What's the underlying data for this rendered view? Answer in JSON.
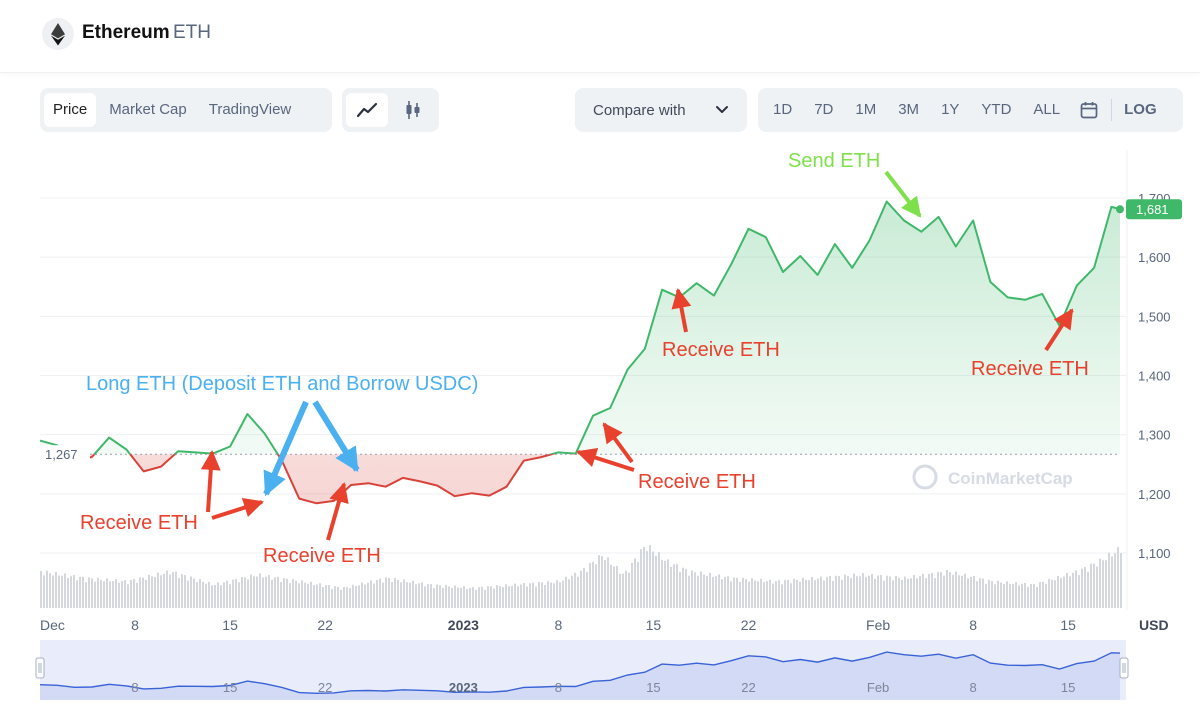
{
  "header": {
    "coin_name": "Ethereum",
    "coin_symbol": "ETH"
  },
  "tabs": [
    "Price",
    "Market Cap",
    "TradingView"
  ],
  "chart_icons": [
    "line-chart-icon",
    "candlestick-icon"
  ],
  "compare": {
    "label": "Compare with"
  },
  "ranges": [
    "1D",
    "7D",
    "1M",
    "3M",
    "1Y",
    "YTD",
    "ALL"
  ],
  "log_label": "LOG",
  "colors": {
    "up": "#3fb86a",
    "down": "#d7433a",
    "annotation_red": "#e8412e",
    "annotation_blue": "#4ab0f0",
    "annotation_green": "#7ee04a",
    "volume": "#c9cdd6"
  },
  "watermark": "CoinMarketCap",
  "chart_data": {
    "type": "line",
    "title": "",
    "currency": "USD",
    "baseline": 1267,
    "baseline_label": "1,267",
    "last_price_label": "1,681",
    "ylim": [
      1050,
      1730
    ],
    "y_ticks": [
      1100,
      1200,
      1300,
      1400,
      1500,
      1600,
      1700
    ],
    "y_tick_labels": [
      "1,100",
      "1,200",
      "1,300",
      "1,400",
      "1,500",
      "1,600",
      "1,700"
    ],
    "xlim": [
      0,
      50
    ],
    "x_ticks": [
      {
        "label": "Dec",
        "x": 0,
        "bold": false
      },
      {
        "label": "8",
        "x": 4.4,
        "bold": false
      },
      {
        "label": "15",
        "x": 8.8,
        "bold": false
      },
      {
        "label": "22",
        "x": 13.2,
        "bold": false
      },
      {
        "label": "2023",
        "x": 19.6,
        "bold": true
      },
      {
        "label": "8",
        "x": 24.0,
        "bold": false
      },
      {
        "label": "15",
        "x": 28.4,
        "bold": false
      },
      {
        "label": "22",
        "x": 32.8,
        "bold": false
      },
      {
        "label": "Feb",
        "x": 38.8,
        "bold": false
      },
      {
        "label": "8",
        "x": 43.2,
        "bold": false
      },
      {
        "label": "15",
        "x": 47.6,
        "bold": false
      }
    ],
    "series": [
      {
        "x": [
          0,
          0.8,
          1.6,
          2.4,
          3.2,
          4.0,
          4.8,
          5.6,
          6.4,
          7.2,
          8.0,
          8.8,
          9.6,
          10.4,
          11.2,
          12.0,
          12.8,
          13.6,
          14.4,
          15.2,
          16.0,
          16.8,
          17.6,
          18.4,
          19.2,
          20.0,
          20.8,
          21.6,
          22.4,
          23.2,
          24.0,
          24.8,
          25.6,
          26.4,
          27.2,
          28.0,
          28.8,
          29.6,
          30.4,
          31.2,
          32.0,
          32.8,
          33.6,
          34.4,
          35.2,
          36.0,
          36.8,
          37.6,
          38.4,
          39.2,
          40.0,
          40.8,
          41.6,
          42.4,
          43.2,
          44.0,
          44.8,
          45.6,
          46.4,
          47.2,
          48.0,
          48.8,
          49.6,
          50.0
        ],
        "y": [
          1290,
          1282,
          1258,
          1262,
          1295,
          1275,
          1238,
          1246,
          1272,
          1270,
          1268,
          1280,
          1335,
          1302,
          1256,
          1192,
          1184,
          1188,
          1215,
          1218,
          1212,
          1227,
          1221,
          1214,
          1196,
          1201,
          1197,
          1212,
          1256,
          1262,
          1270,
          1268,
          1332,
          1345,
          1410,
          1445,
          1545,
          1532,
          1556,
          1535,
          1588,
          1648,
          1634,
          1575,
          1602,
          1570,
          1622,
          1582,
          1628,
          1694,
          1662,
          1643,
          1668,
          1618,
          1662,
          1558,
          1532,
          1528,
          1538,
          1484,
          1552,
          1582,
          1685,
          1681
        ]
      }
    ],
    "volume_series": {
      "x": [
        0,
        2,
        4,
        6,
        8,
        10,
        12,
        14,
        16,
        18,
        20,
        22,
        24,
        25,
        26,
        27,
        28,
        29,
        30,
        32,
        34,
        36,
        38,
        40,
        42,
        44,
        46,
        48,
        49,
        50
      ],
      "relative": [
        0.55,
        0.45,
        0.4,
        0.55,
        0.35,
        0.5,
        0.4,
        0.3,
        0.45,
        0.35,
        0.3,
        0.35,
        0.4,
        0.55,
        0.8,
        0.5,
        0.95,
        0.7,
        0.55,
        0.45,
        0.4,
        0.45,
        0.5,
        0.45,
        0.55,
        0.4,
        0.35,
        0.55,
        0.7,
        0.9
      ]
    },
    "navigator": {
      "x_ticks": [
        {
          "label": "8",
          "x": 4.4,
          "bold": false
        },
        {
          "label": "15",
          "x": 8.8,
          "bold": false
        },
        {
          "label": "22",
          "x": 13.2,
          "bold": false
        },
        {
          "label": "2023",
          "x": 19.6,
          "bold": true
        },
        {
          "label": "8",
          "x": 24.0,
          "bold": false
        },
        {
          "label": "15",
          "x": 28.4,
          "bold": false
        },
        {
          "label": "22",
          "x": 32.8,
          "bold": false
        },
        {
          "label": "Feb",
          "x": 38.8,
          "bold": false
        },
        {
          "label": "8",
          "x": 43.2,
          "bold": false
        },
        {
          "label": "15",
          "x": 47.6,
          "bold": false
        }
      ]
    },
    "annotations": [
      {
        "text": "Send ETH",
        "color": "green"
      },
      {
        "text": "Receive ETH",
        "color": "red"
      },
      {
        "text": "Long ETH (Deposit ETH and Borrow USDC)",
        "color": "blue"
      },
      {
        "text": "Receive ETH",
        "color": "red"
      },
      {
        "text": "Receive ETH",
        "color": "red"
      },
      {
        "text": "Receive ETH",
        "color": "red"
      },
      {
        "text": "Receive ETH",
        "color": "red"
      }
    ]
  }
}
